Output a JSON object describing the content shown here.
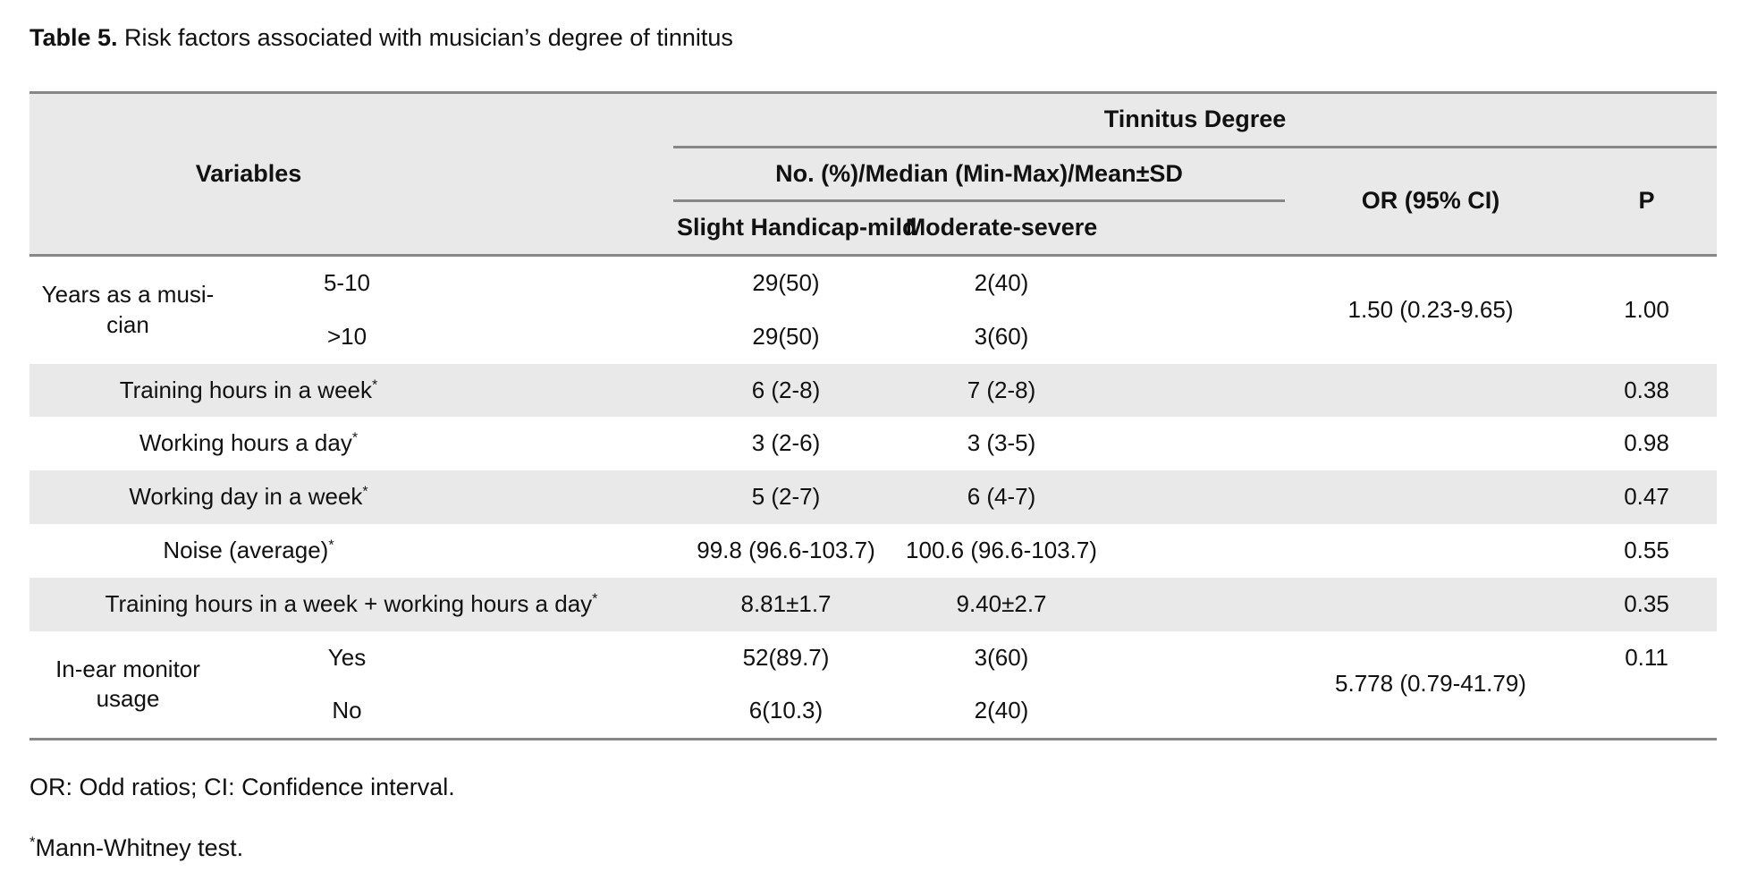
{
  "title": {
    "label": "Table 5.",
    "text": " Risk factors associated with musician’s degree of tinnitus"
  },
  "header": {
    "variables": "Variables",
    "tinnitus_degree": "Tinnitus Degree",
    "measure": "No. (%)/Median (Min-Max)/Mean±SD",
    "slight": "Slight Handicap-mild",
    "moderate": "Moderate-severe",
    "or": "OR (95% CI)",
    "p": "P"
  },
  "rows": [
    {
      "shade": false,
      "cells": [
        {
          "kind": "label",
          "rowspan": 2,
          "lines": [
            "Years as a musi-",
            "cian"
          ]
        },
        {
          "kind": "category",
          "lines": [
            "5-10"
          ]
        },
        {
          "kind": "spacer"
        },
        {
          "kind": "value",
          "lines": [
            "29(50)"
          ]
        },
        {
          "kind": "value",
          "lines": [
            "2(40)"
          ]
        },
        {
          "kind": "spacer"
        },
        {
          "kind": "or",
          "rowspan": 2,
          "lines": [
            "1.50 (0.23-9.65)"
          ]
        },
        {
          "kind": "p",
          "rowspan": 2,
          "lines": [
            "1.00"
          ]
        }
      ]
    },
    {
      "shade": false,
      "cells": [
        {
          "kind": "category",
          "lines": [
            ">10"
          ]
        },
        {
          "kind": "spacer"
        },
        {
          "kind": "value",
          "lines": [
            "29(50)"
          ]
        },
        {
          "kind": "value",
          "lines": [
            "3(60)"
          ]
        },
        {
          "kind": "spacer"
        }
      ]
    },
    {
      "shade": true,
      "cells": [
        {
          "kind": "label",
          "colspan": 2,
          "lines": [
            "Training hours in a week"
          ],
          "sup": "*"
        },
        {
          "kind": "spacer"
        },
        {
          "kind": "value",
          "lines": [
            "6 (2-8)"
          ]
        },
        {
          "kind": "value",
          "lines": [
            "7 (2-8)"
          ]
        },
        {
          "kind": "spacer"
        },
        {
          "kind": "or",
          "lines": []
        },
        {
          "kind": "p",
          "lines": [
            "0.38"
          ]
        }
      ]
    },
    {
      "shade": false,
      "cells": [
        {
          "kind": "label",
          "colspan": 2,
          "lines": [
            "Working hours a day"
          ],
          "sup": "*"
        },
        {
          "kind": "spacer"
        },
        {
          "kind": "value",
          "lines": [
            "3 (2-6)"
          ]
        },
        {
          "kind": "value",
          "lines": [
            "3 (3-5)"
          ]
        },
        {
          "kind": "spacer"
        },
        {
          "kind": "or",
          "lines": []
        },
        {
          "kind": "p",
          "lines": [
            "0.98"
          ]
        }
      ]
    },
    {
      "shade": true,
      "cells": [
        {
          "kind": "label",
          "colspan": 2,
          "lines": [
            "Working day in a week"
          ],
          "sup": "*"
        },
        {
          "kind": "spacer"
        },
        {
          "kind": "value",
          "lines": [
            "5 (2-7)"
          ]
        },
        {
          "kind": "value",
          "lines": [
            "6 (4-7)"
          ]
        },
        {
          "kind": "spacer"
        },
        {
          "kind": "or",
          "lines": []
        },
        {
          "kind": "p",
          "lines": [
            "0.47"
          ]
        }
      ]
    },
    {
      "shade": false,
      "cells": [
        {
          "kind": "label",
          "colspan": 2,
          "lines": [
            "Noise (average)"
          ],
          "sup": "*"
        },
        {
          "kind": "spacer"
        },
        {
          "kind": "value",
          "lines": [
            "99.8 (96.6-103.7)"
          ]
        },
        {
          "kind": "value",
          "lines": [
            "100.6 (96.6-103.7)"
          ]
        },
        {
          "kind": "spacer"
        },
        {
          "kind": "or",
          "lines": []
        },
        {
          "kind": "p",
          "lines": [
            "0.55"
          ]
        }
      ]
    },
    {
      "shade": true,
      "cells": [
        {
          "kind": "label",
          "colspan": 3,
          "lines": [
            "Training hours in a week + working hours a day"
          ],
          "sup": "*"
        },
        {
          "kind": "value",
          "lines": [
            "8.81±1.7"
          ]
        },
        {
          "kind": "value",
          "lines": [
            "9.40±2.7"
          ]
        },
        {
          "kind": "spacer"
        },
        {
          "kind": "or",
          "lines": []
        },
        {
          "kind": "p",
          "lines": [
            "0.35"
          ]
        }
      ]
    },
    {
      "shade": false,
      "cells": [
        {
          "kind": "label",
          "rowspan": 2,
          "lines": [
            "In-ear monitor",
            "usage"
          ]
        },
        {
          "kind": "category",
          "lines": [
            "Yes"
          ]
        },
        {
          "kind": "spacer"
        },
        {
          "kind": "value",
          "lines": [
            "52(89.7)"
          ]
        },
        {
          "kind": "value",
          "lines": [
            "3(60)"
          ]
        },
        {
          "kind": "spacer"
        },
        {
          "kind": "or",
          "rowspan": 2,
          "lines": [
            "5.778 (0.79-41.79)"
          ]
        },
        {
          "kind": "p",
          "lines": [
            "0.11"
          ]
        }
      ]
    },
    {
      "shade": false,
      "cells": [
        {
          "kind": "category",
          "lines": [
            "No"
          ]
        },
        {
          "kind": "spacer"
        },
        {
          "kind": "value",
          "lines": [
            "6(10.3)"
          ]
        },
        {
          "kind": "value",
          "lines": [
            "2(40)"
          ]
        },
        {
          "kind": "spacer"
        },
        {
          "kind": "p",
          "lines": []
        }
      ]
    }
  ],
  "footnotes": {
    "abbreviations": "OR: Odd ratios; CI: Confidence interval.",
    "asterisk": "*",
    "mann_whitney": "Mann-Whitney test."
  },
  "colors": {
    "row_shade": "#e9e9e9",
    "header_bg": "#e9e9e9",
    "border_line": "#878787",
    "text": "#111111"
  }
}
